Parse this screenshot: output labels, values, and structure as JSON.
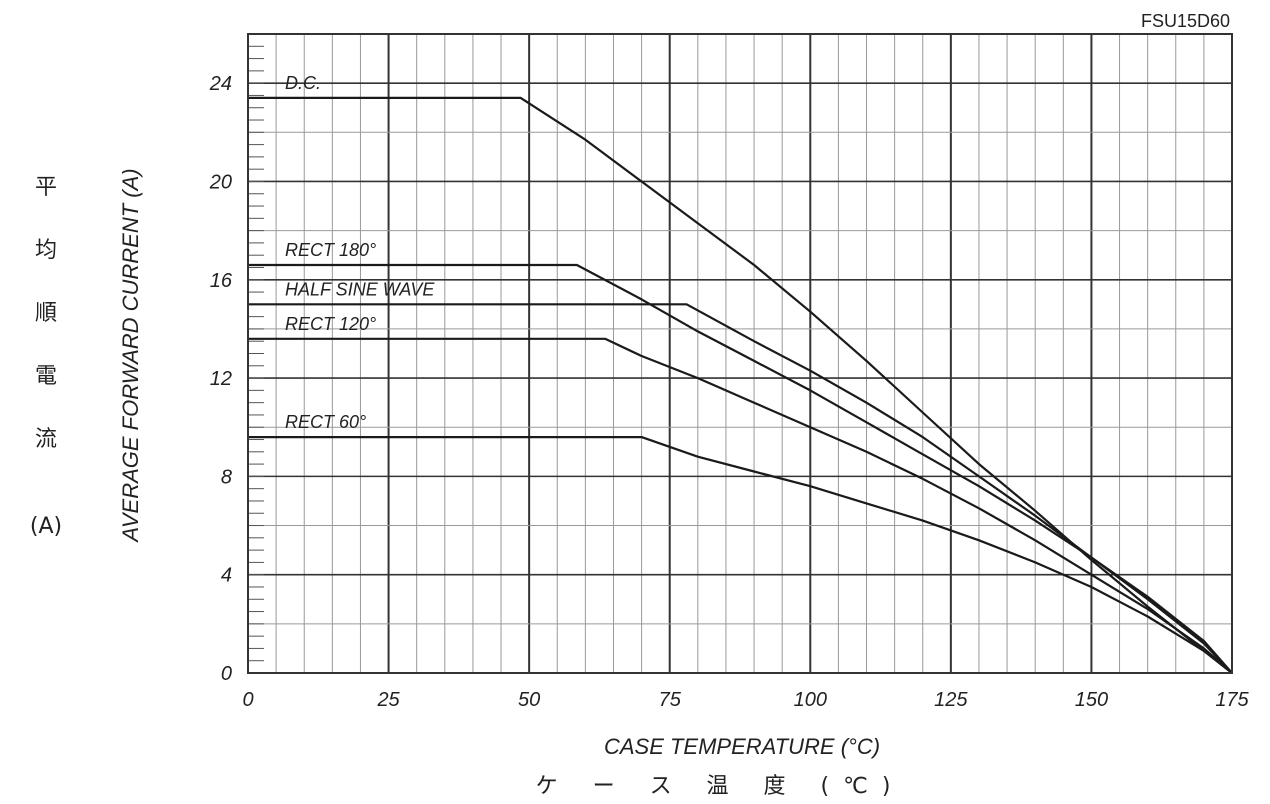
{
  "chart_data": {
    "type": "line",
    "title": "FSU15D60",
    "xlabel": "CASE TEMPERATURE (°C)",
    "xlabel_jp": "ケ ー ス 温 度 (℃)",
    "ylabel": "AVERAGE FORWARD CURRENT (A)",
    "ylabel_jp": [
      "平",
      "均",
      "順",
      "電",
      "流"
    ],
    "ylabel_jp_unit": "(A)",
    "xlim": [
      0,
      175
    ],
    "ylim": [
      0,
      26
    ],
    "x_ticks": [
      0,
      25,
      50,
      75,
      100,
      125,
      150,
      175
    ],
    "y_ticks": [
      0,
      4,
      8,
      12,
      16,
      20,
      24
    ],
    "grid": true,
    "series": [
      {
        "name": "D.C.",
        "x": [
          0,
          48.5,
          60,
          70,
          80,
          90,
          100,
          110,
          120,
          130,
          140,
          150,
          160,
          170,
          175
        ],
        "y": [
          23.4,
          23.4,
          21.7,
          20.0,
          18.3,
          16.6,
          14.7,
          12.7,
          10.6,
          8.5,
          6.6,
          4.6,
          2.7,
          0.9,
          0
        ]
      },
      {
        "name": "RECT 180°",
        "x": [
          0,
          58.5,
          70,
          80,
          90,
          100,
          110,
          120,
          130,
          140,
          150,
          160,
          170,
          175
        ],
        "y": [
          16.6,
          16.6,
          15.2,
          13.9,
          12.7,
          11.5,
          10.2,
          8.9,
          7.6,
          6.2,
          4.7,
          3.0,
          1.2,
          0
        ]
      },
      {
        "name": "HALF SINE WAVE",
        "x": [
          0,
          78,
          90,
          100,
          110,
          120,
          130,
          140,
          150,
          160,
          170,
          175
        ],
        "y": [
          15.0,
          15.0,
          13.5,
          12.3,
          11.0,
          9.6,
          8.0,
          6.4,
          4.7,
          3.1,
          1.3,
          0
        ]
      },
      {
        "name": "RECT 120°",
        "x": [
          0,
          63.5,
          70,
          80,
          90,
          100,
          110,
          120,
          130,
          140,
          150,
          160,
          170,
          175
        ],
        "y": [
          13.6,
          13.6,
          12.9,
          12.0,
          11.0,
          10.0,
          9.0,
          7.9,
          6.7,
          5.4,
          4.0,
          2.6,
          1.0,
          0
        ]
      },
      {
        "name": "RECT 60°",
        "x": [
          0,
          70,
          80,
          90,
          100,
          110,
          120,
          130,
          140,
          150,
          160,
          170,
          175
        ],
        "y": [
          9.6,
          9.6,
          8.8,
          8.2,
          7.6,
          6.9,
          6.2,
          5.4,
          4.5,
          3.5,
          2.3,
          0.9,
          0
        ]
      }
    ]
  }
}
